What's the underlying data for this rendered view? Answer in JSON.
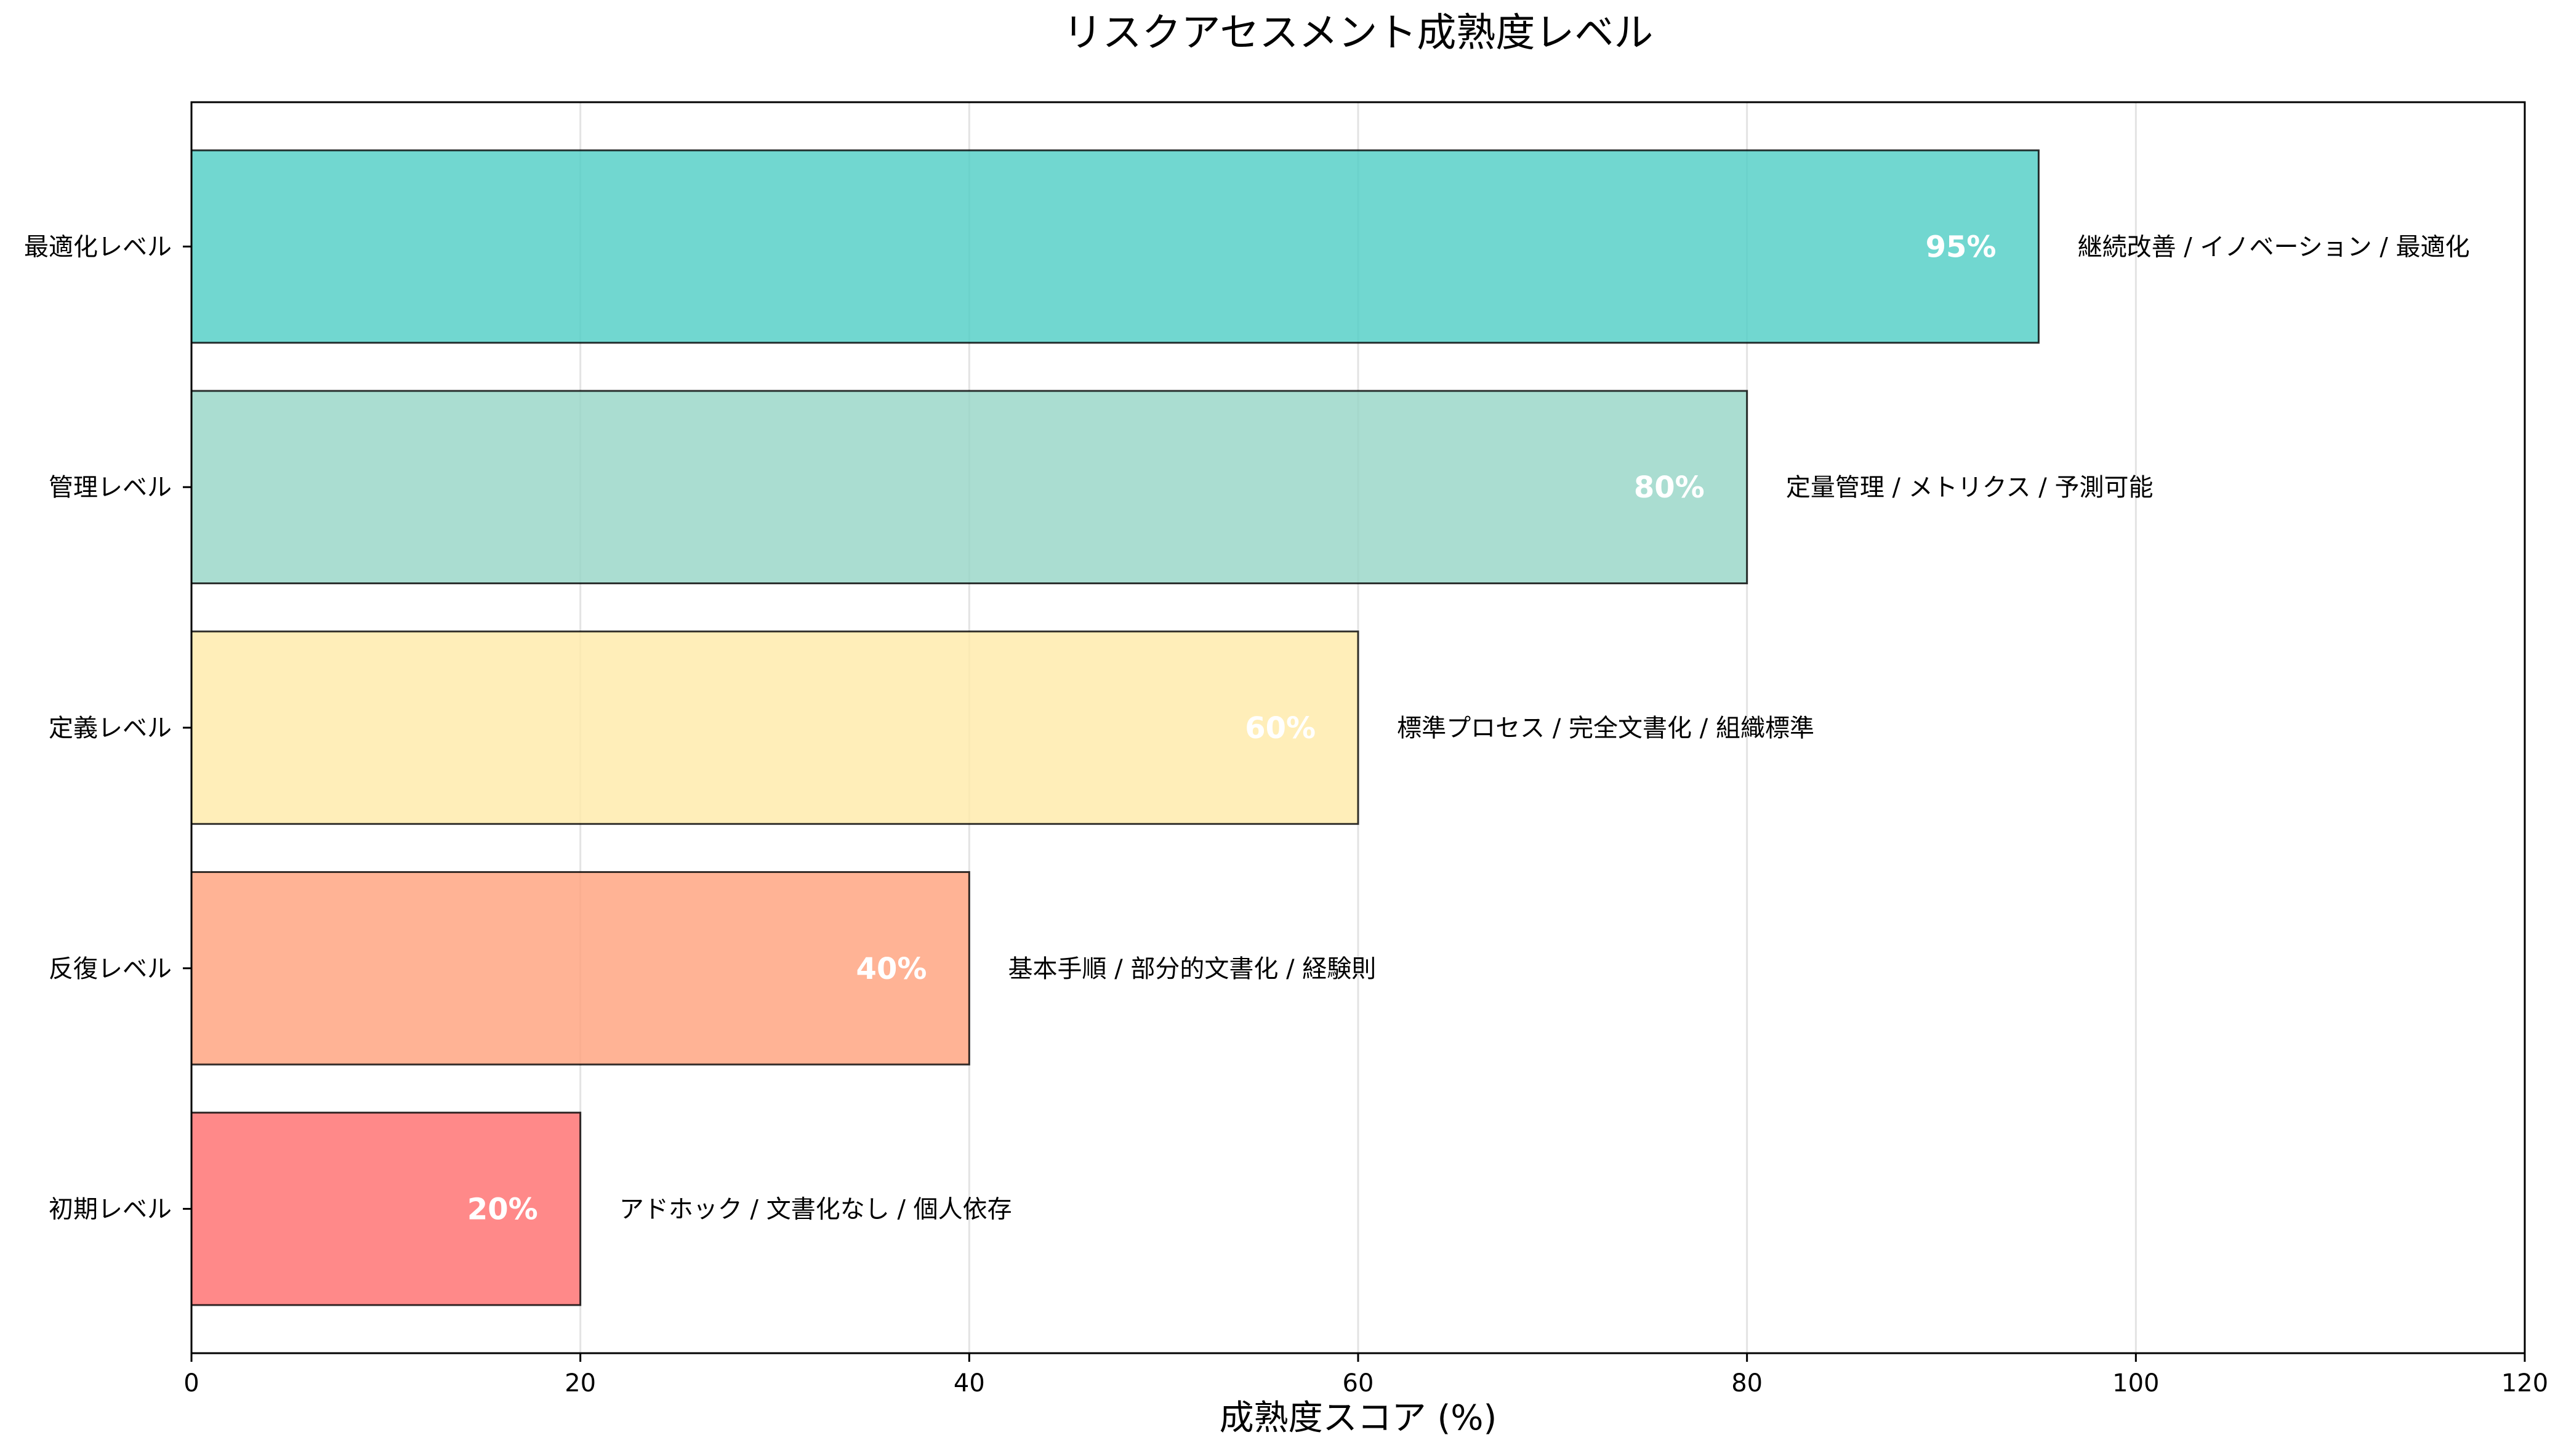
{
  "chart_data": {
    "type": "bar",
    "orientation": "horizontal",
    "title": "リスクアセスメント成熟度レベル",
    "xlabel": "成熟度スコア (%)",
    "ylabel": "",
    "xlim": [
      0,
      120
    ],
    "xticks": [
      0,
      20,
      40,
      60,
      80,
      100,
      120
    ],
    "grid": "vertical",
    "categories": [
      "最適化レベル",
      "管理レベル",
      "定義レベル",
      "反復レベル",
      "初期レベル"
    ],
    "values": [
      95,
      80,
      60,
      40,
      20
    ],
    "value_labels": [
      "95%",
      "80%",
      "60%",
      "40%",
      "20%"
    ],
    "colors": [
      "#4ECDC4",
      "#95D5C6",
      "#FFEAA7",
      "#FFA07A",
      "#FF6B6B"
    ],
    "annotations": [
      "継続改善 / イノベーション / 最適化",
      "定量管理 / メトリクス / 予測可能",
      "標準プロセス / 完全文書化 / 組織標準",
      "基本手順 / 部分的文書化 / 経験則",
      "アドホック / 文書化なし / 個人依存"
    ]
  }
}
